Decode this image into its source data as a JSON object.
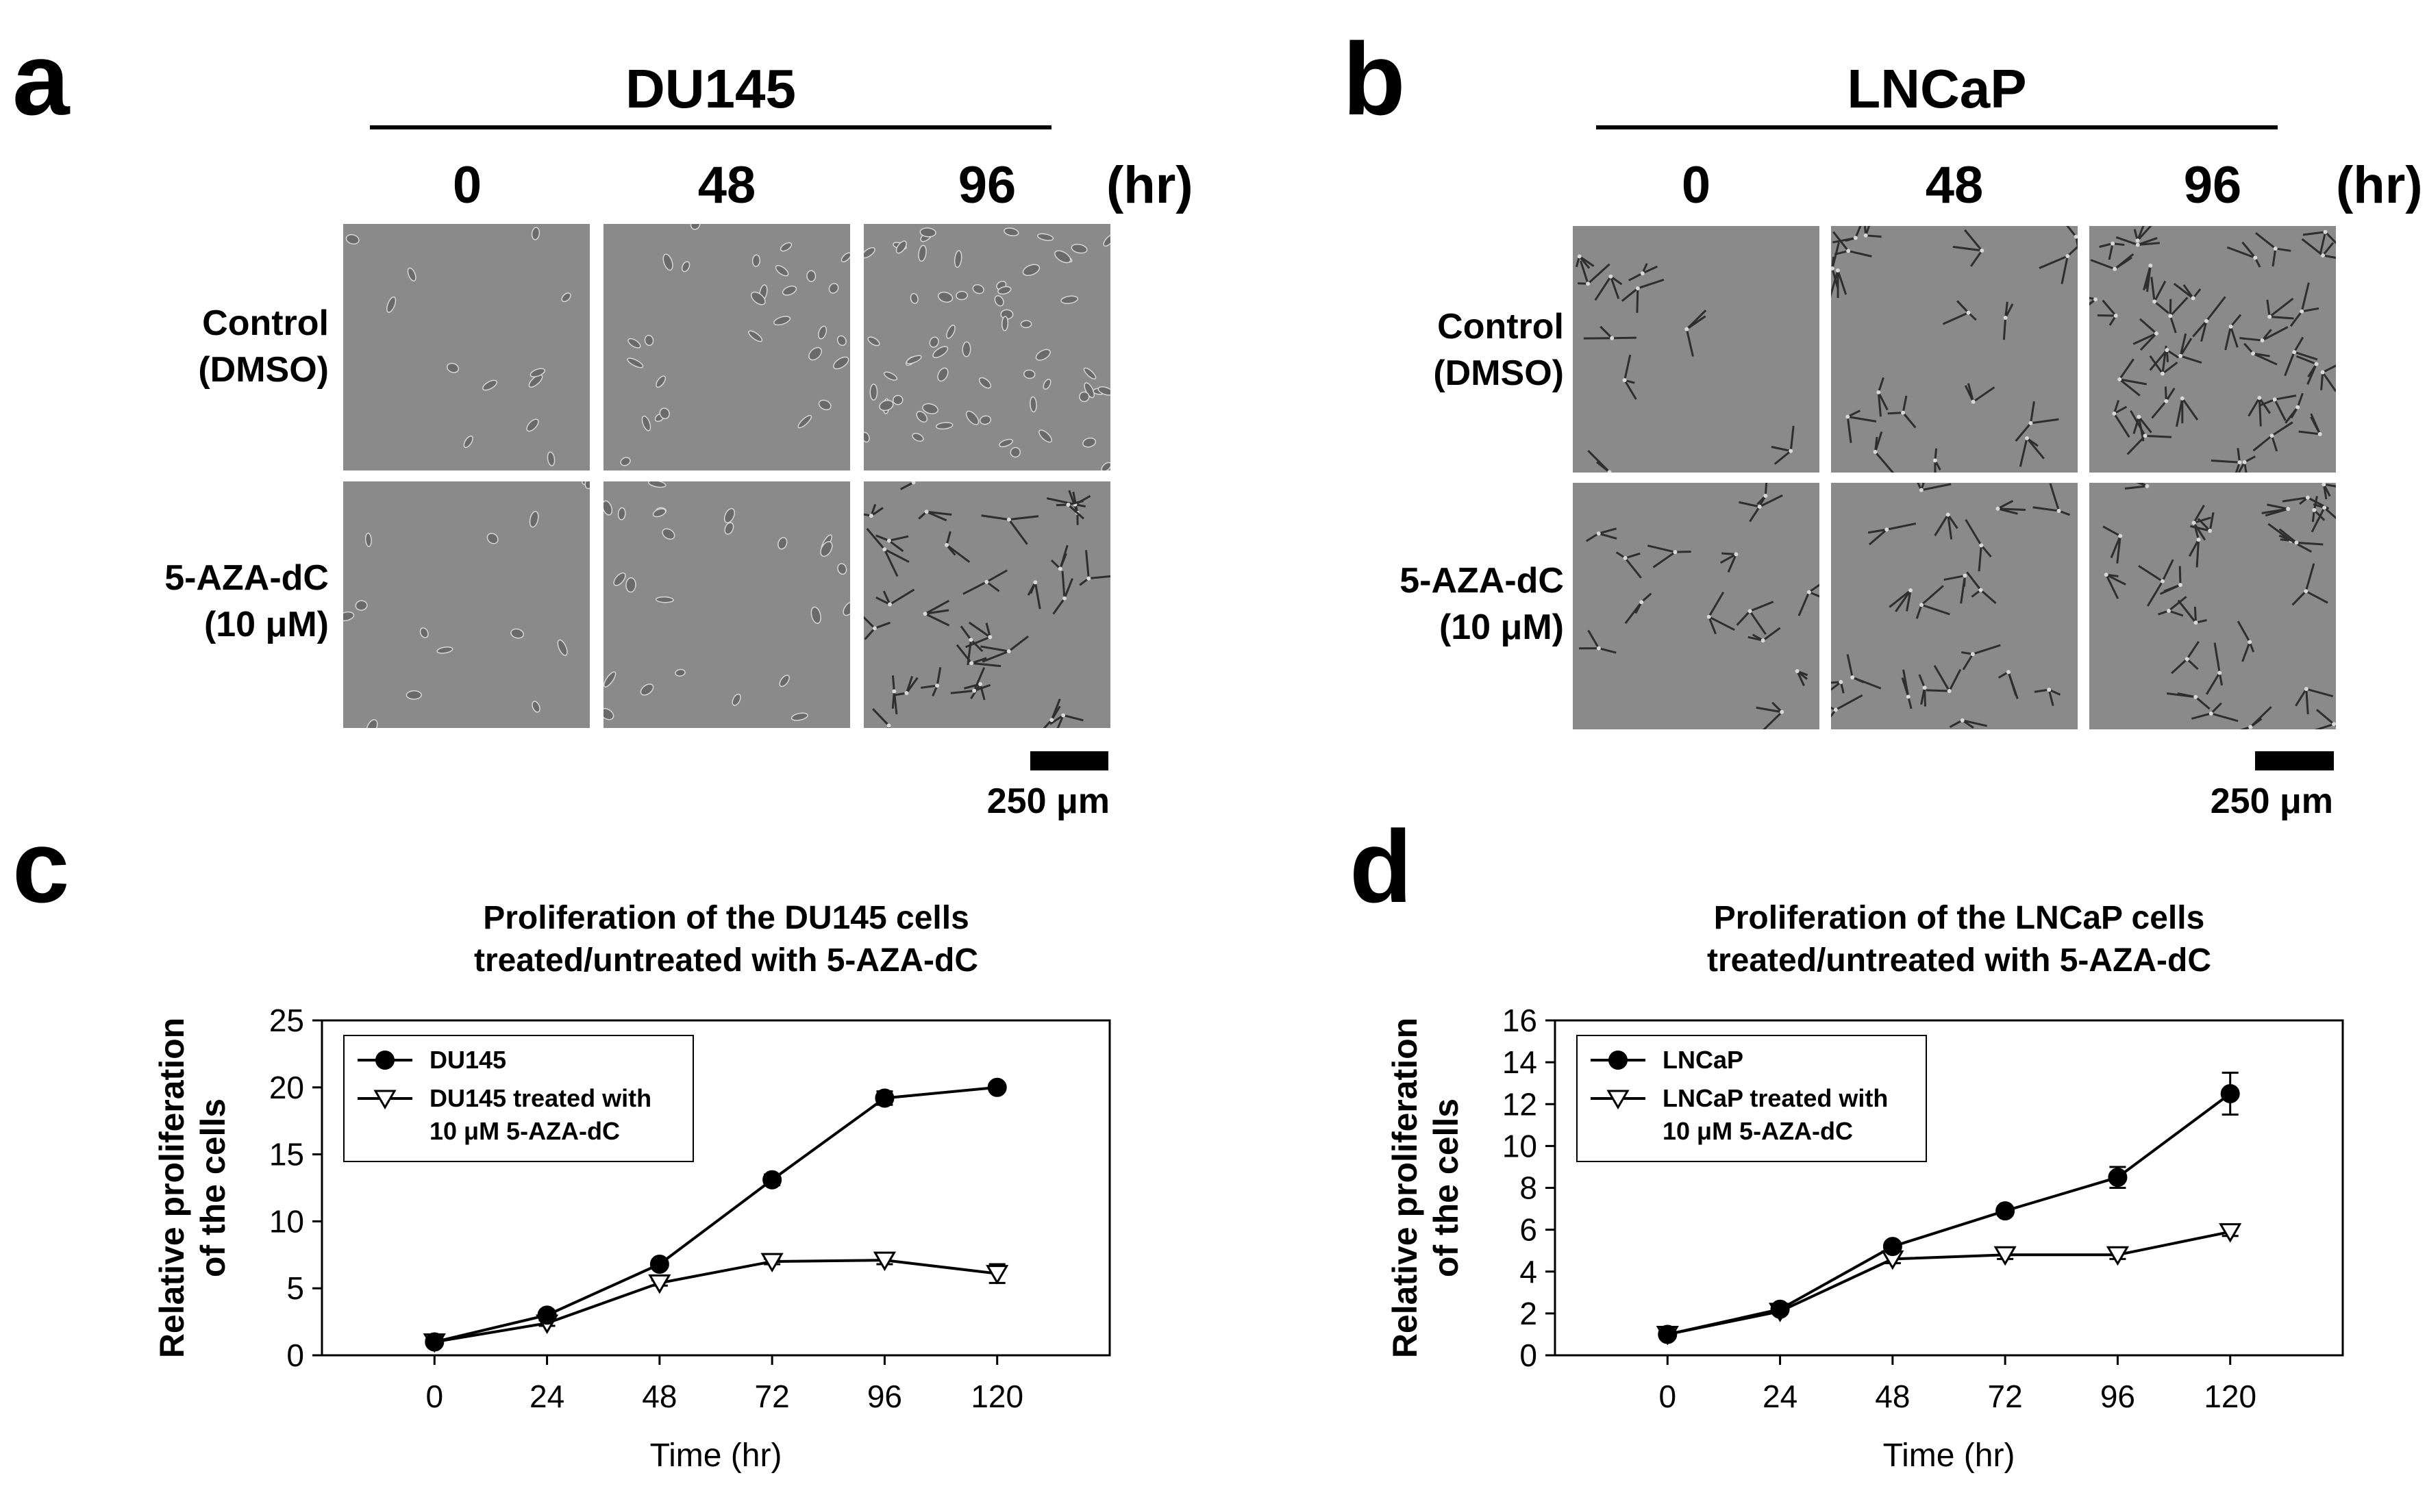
{
  "panels": {
    "a": {
      "letter": "a",
      "cell_line": "DU145",
      "hours": [
        "0",
        "48",
        "96"
      ],
      "unit": "(hr)",
      "rows": [
        {
          "line1": "Control",
          "line2": "(DMSO)"
        },
        {
          "line1": "5-AZA-dC",
          "line2": "(10 μM)"
        }
      ],
      "scale_label": "250 μm"
    },
    "b": {
      "letter": "b",
      "cell_line": "LNCaP",
      "hours": [
        "0",
        "48",
        "96"
      ],
      "unit": "(hr)",
      "rows": [
        {
          "line1": "Control",
          "line2": "(DMSO)"
        },
        {
          "line1": "5-AZA-dC",
          "line2": "(10 μM)"
        }
      ],
      "scale_label": "250 μm"
    },
    "c": {
      "letter": "c"
    },
    "d": {
      "letter": "d"
    }
  },
  "chart_data": [
    {
      "id": "c",
      "type": "line",
      "title_line1": "Proliferation of the DU145 cells",
      "title_line2": "treated/untreated with 5-AZA-dC",
      "xlabel": "Time (hr)",
      "ylabel_line1": "Relative proliferation",
      "ylabel_line2": "of the cells",
      "x": [
        0,
        24,
        48,
        72,
        96,
        120
      ],
      "xlim": [
        -24,
        144
      ],
      "ylim": [
        0,
        25
      ],
      "yticks": [
        0,
        5,
        10,
        15,
        20,
        25
      ],
      "grid": false,
      "legend_position": "top-left",
      "series": [
        {
          "name": "DU145",
          "legend_line1": "DU145",
          "legend_line2": "",
          "marker": "filled-circle",
          "values": [
            1.0,
            3.0,
            6.8,
            13.1,
            19.2,
            20.0
          ],
          "errors": [
            0.1,
            0.2,
            0.2,
            0.4,
            0.5,
            0.3
          ]
        },
        {
          "name": "DU145 treated with 10 μM 5-AZA-dC",
          "legend_line1": "DU145 treated with",
          "legend_line2": "10 μM 5-AZA-dC",
          "marker": "open-triangle-down",
          "values": [
            1.0,
            2.4,
            5.4,
            7.0,
            7.1,
            6.1
          ],
          "errors": [
            0.1,
            0.2,
            0.2,
            0.2,
            0.3,
            0.7
          ]
        }
      ]
    },
    {
      "id": "d",
      "type": "line",
      "title_line1": "Proliferation of the LNCaP cells",
      "title_line2": "treated/untreated with 5-AZA-dC",
      "xlabel": "Time (hr)",
      "ylabel_line1": "Relative proliferation",
      "ylabel_line2": "of the cells",
      "x": [
        0,
        24,
        48,
        72,
        96,
        120
      ],
      "xlim": [
        -24,
        144
      ],
      "ylim": [
        0,
        16
      ],
      "yticks": [
        0,
        2,
        4,
        6,
        8,
        10,
        12,
        14,
        16
      ],
      "grid": false,
      "legend_position": "top-left",
      "series": [
        {
          "name": "LNCaP",
          "legend_line1": "LNCaP",
          "legend_line2": "",
          "marker": "filled-circle",
          "values": [
            1.0,
            2.2,
            5.2,
            6.9,
            8.5,
            12.5
          ],
          "errors": [
            0.1,
            0.1,
            0.2,
            0.2,
            0.5,
            1.0
          ]
        },
        {
          "name": "LNCaP treated with 10 μM 5-AZA-dC",
          "legend_line1": "LNCaP treated with",
          "legend_line2": "10 μM 5-AZA-dC",
          "marker": "open-triangle-down",
          "values": [
            1.0,
            2.1,
            4.6,
            4.8,
            4.8,
            5.9
          ],
          "errors": [
            0.1,
            0.1,
            0.2,
            0.2,
            0.2,
            0.2
          ]
        }
      ]
    }
  ]
}
